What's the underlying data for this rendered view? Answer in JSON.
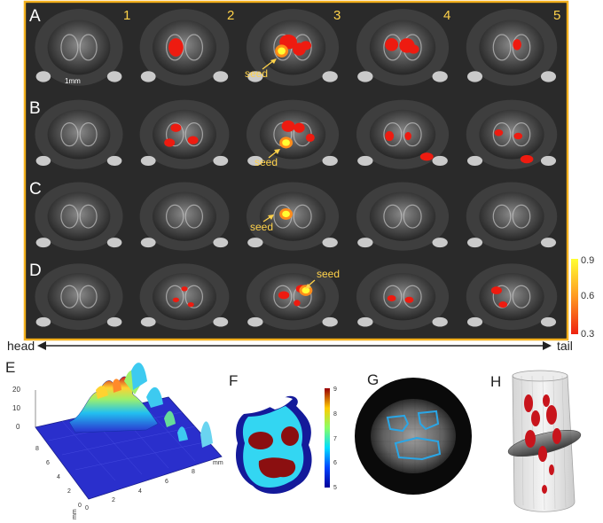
{
  "grid": {
    "row_labels": [
      "A",
      "B",
      "C",
      "D"
    ],
    "column_labels": [
      "1",
      "2",
      "3",
      "4",
      "5"
    ],
    "scale_bar_label": "1mm",
    "seed_label": "seed",
    "colorbar_ticks": [
      "0.9",
      "0.6",
      "0.3"
    ],
    "colorbar_colors": [
      "#ffff33",
      "#ff9922",
      "#ee2211"
    ]
  },
  "axis": {
    "left_label": "head",
    "right_label": "tail"
  },
  "panels": {
    "e": {
      "label": "E",
      "z_ticks": [
        "20",
        "10",
        "0"
      ],
      "x_ticks": [
        "0",
        "2",
        "4",
        "6",
        "8"
      ],
      "y_ticks": [
        "0",
        "2",
        "4",
        "6",
        "8"
      ],
      "x_unit": "mm",
      "y_unit": "mm"
    },
    "f": {
      "label": "F",
      "colorbar_ticks": [
        "9",
        "8",
        "7",
        "6",
        "5"
      ]
    },
    "g": {
      "label": "G"
    },
    "h": {
      "label": "H"
    }
  },
  "colors": {
    "frame": "#f2b01e",
    "label_yellow": "#ffd24a",
    "activation_red": "#ee1b10",
    "dark_red": "#8b0f10",
    "cyan": "#33d6f2",
    "navy": "#141a9a"
  }
}
